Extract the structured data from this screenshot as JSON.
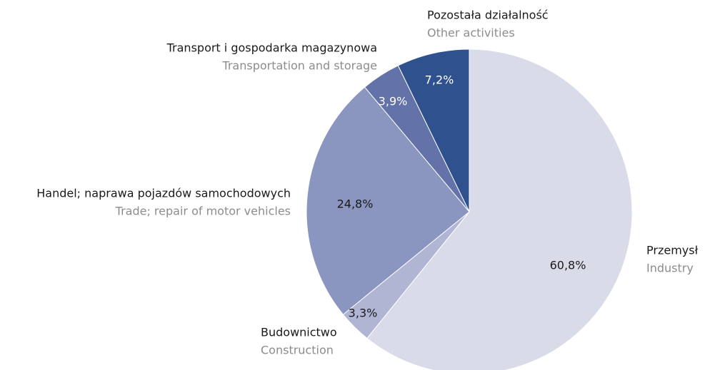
{
  "chart_data": {
    "type": "pie",
    "categories": [
      "Przemysł",
      "Budownictwo",
      "Handel; naprawa pojazdów samochodowych",
      "Transport i gospodarka magazynowa",
      "Pozostała działalność"
    ],
    "categories_en": [
      "Industry",
      "Construction",
      "Trade; repair of motor vehicles",
      "Transportation and storage",
      "Other activities"
    ],
    "values": [
      60.8,
      3.3,
      24.8,
      3.9,
      7.2
    ],
    "value_labels": [
      "60,8%",
      "3,3%",
      "24,8%",
      "3,9%",
      "7,2%"
    ],
    "colors": [
      "#d9dbe9",
      "#b0b5d3",
      "#8a96c0",
      "#6372a8",
      "#2f528e"
    ]
  }
}
